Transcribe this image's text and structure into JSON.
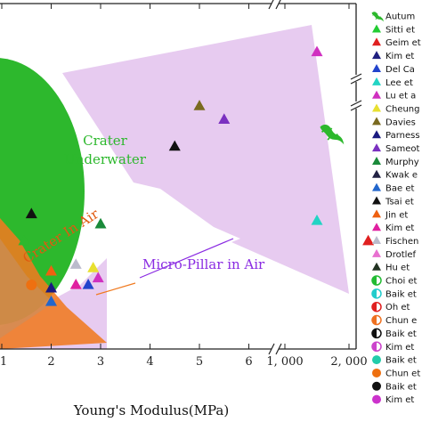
{
  "chart_data": {
    "type": "scatter",
    "xlabel": "Young's Modulus(MPa)",
    "x_broken_axis": true,
    "x_ticks_segment1": [
      "1",
      "2",
      "3",
      "4",
      "5",
      "6"
    ],
    "x_ticks_segment2": [
      "1, 000",
      "2, 000"
    ],
    "y_broken_axis": true,
    "regions": [
      {
        "label": "Crater\nUnderwater",
        "color": "#2db82d"
      },
      {
        "label": "Crater In Air",
        "color": "#f07a20"
      },
      {
        "label": "Micro-Pillar in Air",
        "color": "#8a2be2"
      }
    ],
    "legend": [
      {
        "label": "Autum",
        "color": "#2db82d",
        "marker": "gecko"
      },
      {
        "label": "Sitti et",
        "color": "#22cc33",
        "marker": "triangle"
      },
      {
        "label": "Geim et",
        "color": "#e02020",
        "marker": "triangle"
      },
      {
        "label": "Kim et",
        "color": "#202080",
        "marker": "triangle"
      },
      {
        "label": "Del Ca",
        "color": "#2244cc",
        "marker": "triangle"
      },
      {
        "label": "Lee et",
        "color": "#22d4c4",
        "marker": "triangle"
      },
      {
        "label": "Lu et a",
        "color": "#d030c0",
        "marker": "triangle"
      },
      {
        "label": "Cheung",
        "color": "#e8e030",
        "marker": "triangle"
      },
      {
        "label": "Davies",
        "color": "#7a6a20",
        "marker": "triangle"
      },
      {
        "label": "Parness",
        "color": "#1a1a80",
        "marker": "triangle"
      },
      {
        "label": "Sameot",
        "color": "#7a30c0",
        "marker": "triangle"
      },
      {
        "label": "Murphy",
        "color": "#1a8a3a",
        "marker": "triangle"
      },
      {
        "label": "Kwak e",
        "color": "#222244",
        "marker": "triangle"
      },
      {
        "label": "Bae et",
        "color": "#2266cc",
        "marker": "triangle"
      },
      {
        "label": "Tsai et",
        "color": "#111111",
        "marker": "triangle"
      },
      {
        "label": "Jin et",
        "color": "#ee6010",
        "marker": "triangle"
      },
      {
        "label": "Kim et",
        "color": "#e020a0",
        "marker": "triangle"
      },
      {
        "label": "Fischen",
        "color": "#bbbbcc",
        "marker": "triangle"
      },
      {
        "label": "Drotlef",
        "color": "#e870d0",
        "marker": "triangle"
      },
      {
        "label": "Hu et",
        "color": "#223322",
        "marker": "triangle"
      },
      {
        "label": "Choi et",
        "color": "#22bb33",
        "marker": "half-circle"
      },
      {
        "label": "Baik et",
        "color": "#22cccc",
        "marker": "half-circle"
      },
      {
        "label": "Oh et",
        "color": "#e02020",
        "marker": "half-circle"
      },
      {
        "label": "Chun e",
        "color": "#ee7020",
        "marker": "half-circle"
      },
      {
        "label": "Baik et",
        "color": "#111111",
        "marker": "half-circle"
      },
      {
        "label": "Kim et",
        "color": "#cc44cc",
        "marker": "half-circle"
      },
      {
        "label": "Baik et",
        "color": "#22ccaa",
        "marker": "circle"
      },
      {
        "label": "Chun et",
        "color": "#ee7010",
        "marker": "circle"
      },
      {
        "label": "Baik et",
        "color": "#111111",
        "marker": "circle"
      },
      {
        "label": "Kim et",
        "color": "#cc33cc",
        "marker": "circle"
      }
    ],
    "points": [
      {
        "x": 1.6,
        "y": 2.0,
        "color": "#111111",
        "marker": "triangle"
      },
      {
        "x": 5.0,
        "y": 3.6,
        "color": "#7a6a20",
        "marker": "triangle"
      },
      {
        "x": 5.5,
        "y": 3.4,
        "color": "#7a30c0",
        "marker": "triangle"
      },
      {
        "x": 4.5,
        "y": 3.0,
        "color": "#111111",
        "marker": "triangle"
      },
      {
        "x": 3.0,
        "y": 1.85,
        "color": "#1a8a3a",
        "marker": "triangle"
      },
      {
        "x": 2.5,
        "y": 1.25,
        "color": "#bbbbcc",
        "marker": "triangle"
      },
      {
        "x": 2.85,
        "y": 1.2,
        "color": "#e8e030",
        "marker": "triangle"
      },
      {
        "x": 2.95,
        "y": 1.05,
        "color": "#d030c0",
        "marker": "triangle"
      },
      {
        "x": 2.5,
        "y": 0.95,
        "color": "#e020a0",
        "marker": "triangle"
      },
      {
        "x": 2.75,
        "y": 0.95,
        "color": "#2244cc",
        "marker": "triangle"
      },
      {
        "x": 2.0,
        "y": 0.9,
        "color": "#1a1a80",
        "marker": "triangle"
      },
      {
        "x": 2.0,
        "y": 1.15,
        "color": "#ee6010",
        "marker": "triangle"
      },
      {
        "x": 2.0,
        "y": 0.7,
        "color": "#2266cc",
        "marker": "triangle"
      },
      {
        "x": 1.6,
        "y": 0.95,
        "color": "#ee7010",
        "marker": "circle"
      },
      {
        "x": 1.45,
        "y": 1.6,
        "color": "#2db82d",
        "marker": "triangle"
      },
      {
        "x": 1500,
        "y": 4.4,
        "color": "#d030c0",
        "marker": "triangle"
      },
      {
        "x": 1500,
        "y": 1.9,
        "color": "#22d4c4",
        "marker": "triangle"
      },
      {
        "x": 2300,
        "y": 1.6,
        "color": "#e02020",
        "marker": "triangle"
      }
    ],
    "gecko": {
      "x": 1700,
      "y": 3.2,
      "color": "#2db82d"
    }
  }
}
